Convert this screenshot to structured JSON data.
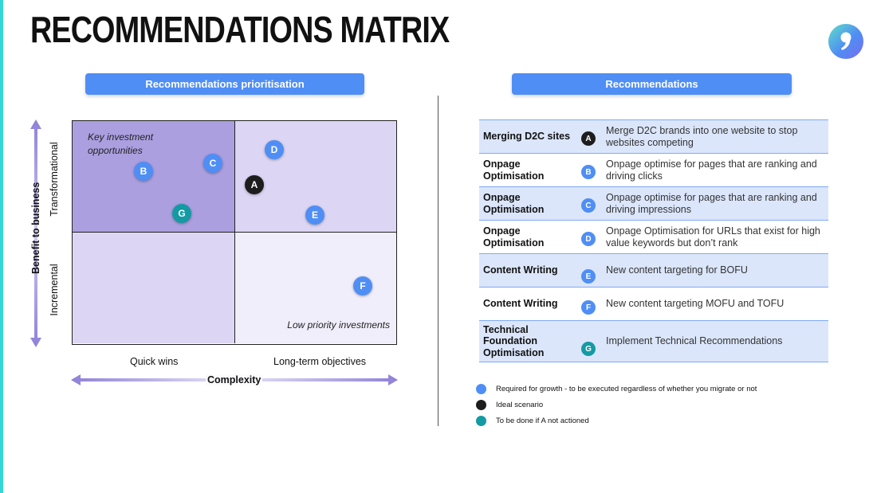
{
  "title": "RECOMMENDATIONS MATRIX",
  "logo_icon": "comma-logo-icon",
  "colors": {
    "blue": "#4f8ef5",
    "black": "#1d1d1d",
    "teal": "#149aa3",
    "accent": "#35d6d6"
  },
  "left_panel": {
    "header": "Recommendations prioritisation",
    "quadrants": {
      "top_left_label": "Key investment opportunities",
      "bottom_right_label": "Low priority investments"
    },
    "y_axis": {
      "title": "Benefit to business",
      "top": "Transformational",
      "bottom": "Incremental"
    },
    "x_axis": {
      "title": "Complexity",
      "left": "Quick wins",
      "right": "Long-term objectives"
    },
    "points": [
      {
        "letter": "A",
        "color": "black"
      },
      {
        "letter": "B",
        "color": "blue"
      },
      {
        "letter": "C",
        "color": "blue"
      },
      {
        "letter": "D",
        "color": "blue"
      },
      {
        "letter": "E",
        "color": "blue"
      },
      {
        "letter": "F",
        "color": "blue"
      },
      {
        "letter": "G",
        "color": "teal"
      }
    ]
  },
  "right_panel": {
    "header": "Recommendations",
    "rows": [
      {
        "category": "Merging D2C sites",
        "letter": "A",
        "color": "black",
        "description": "Merge D2C brands into one website to stop websites competing"
      },
      {
        "category": "Onpage Optimisation",
        "letter": "B",
        "color": "blue",
        "description": "Onpage optimise for pages that are ranking and driving clicks"
      },
      {
        "category": "Onpage Optimisation",
        "letter": "C",
        "color": "blue",
        "description": "Onpage optimise for pages that are ranking and driving impressions"
      },
      {
        "category": "Onpage Optimisation",
        "letter": "D",
        "color": "blue",
        "description": "Onpage Optimisation for URLs that exist for high value keywords but don’t rank"
      },
      {
        "category": "Content Writing",
        "letter": "E",
        "color": "blue",
        "description": "New content targeting for BOFU"
      },
      {
        "category": "Content Writing",
        "letter": "F",
        "color": "blue",
        "description": "New content targeting MOFU and TOFU"
      },
      {
        "category": "Technical Foundation Optimisation",
        "letter": "G",
        "color": "teal",
        "description": "Implement Technical Recommendations"
      }
    ],
    "legend": [
      {
        "color": "blue",
        "text": "Required for growth - to be executed regardless of whether you migrate or not"
      },
      {
        "color": "black",
        "text": "Ideal scenario"
      },
      {
        "color": "teal",
        "text": "To be done if A not actioned"
      }
    ]
  }
}
